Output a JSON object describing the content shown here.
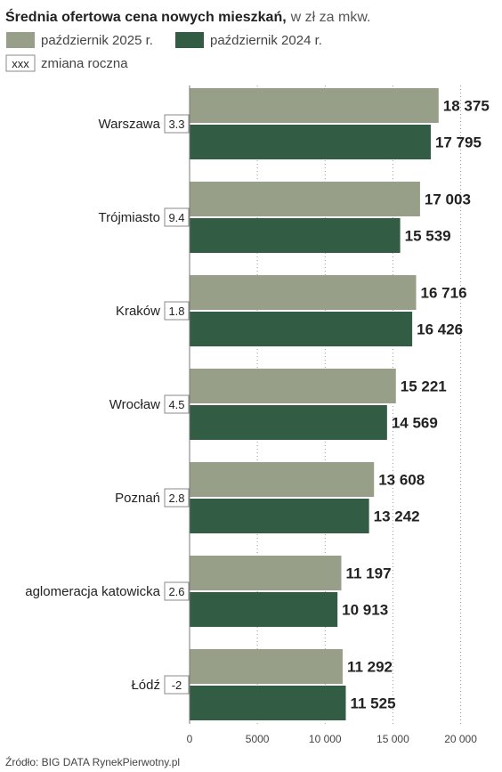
{
  "chart_data": {
    "type": "bar",
    "orientation": "horizontal",
    "title": "Średnia ofertowa cena nowych mieszkań,",
    "subtitle": "w zł za mkw.",
    "categories": [
      "Warszawa",
      "Trójmiasto",
      "Kraków",
      "Wrocław",
      "Poznań",
      "aglomeracja katowicka",
      "Łódź"
    ],
    "series": [
      {
        "name": "październik 2025 r.",
        "color": "#979f88",
        "values": [
          18375,
          17003,
          16716,
          15221,
          13608,
          11197,
          11292
        ]
      },
      {
        "name": "październik 2024 r.",
        "color": "#335c45",
        "values": [
          17795,
          15539,
          16426,
          14569,
          13242,
          10913,
          11525
        ]
      }
    ],
    "value_labels": [
      [
        "18 375",
        "17 795"
      ],
      [
        "17 003",
        "15 539"
      ],
      [
        "16 716",
        "16 426"
      ],
      [
        "15 221",
        "14 569"
      ],
      [
        "13 608",
        "13 242"
      ],
      [
        "11 197",
        "10 913"
      ],
      [
        "11 292",
        "11 525"
      ]
    ],
    "yearly_change": [
      "3.3",
      "9.4",
      "1.8",
      "4.5",
      "2.8",
      "2.6",
      "-2"
    ],
    "change_legend": {
      "box": "xxx",
      "label": "zmiana roczna"
    },
    "xlim": [
      0,
      22000
    ],
    "xticks": [
      0,
      5000,
      10000,
      15000,
      20000
    ],
    "xtick_labels": [
      "0",
      "5000",
      "10 000",
      "15 000",
      "20 000"
    ],
    "grid": true,
    "legend_position": "top-left",
    "source": "Źródło: BIG DATA RynekPierwotny.pl"
  }
}
